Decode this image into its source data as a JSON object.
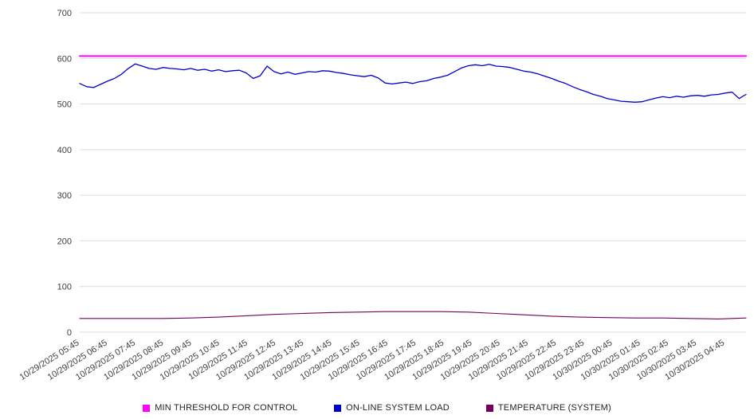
{
  "chart_data": {
    "type": "line",
    "title": "",
    "xlabel": "",
    "ylabel": "",
    "ylim": [
      0,
      700
    ],
    "y_ticks": [
      0,
      100,
      200,
      300,
      400,
      500,
      600,
      700
    ],
    "grid": true,
    "legend_position": "bottom",
    "x_labels": [
      "10/29/2025 05:45",
      "10/29/2025 06:45",
      "10/29/2025 07:45",
      "10/29/2025 08:45",
      "10/29/2025 09:45",
      "10/29/2025 10:45",
      "10/29/2025 11:45",
      "10/29/2025 12:45",
      "10/29/2025 13:45",
      "10/29/2025 14:45",
      "10/29/2025 15:45",
      "10/29/2025 16:45",
      "10/29/2025 17:45",
      "10/29/2025 18:45",
      "10/29/2025 19:45",
      "10/29/2025 20:45",
      "10/29/2025 21:45",
      "10/29/2025 22:45",
      "10/29/2025 23:45",
      "10/30/2025 00:45",
      "10/30/2025 01:45",
      "10/30/2025 02:45",
      "10/30/2025 03:45",
      "10/30/2025 04:45"
    ],
    "series": [
      {
        "id": "min-threshold-for-control",
        "name": "MIN THRESHOLD FOR CONTROL",
        "color": "#ff00ff",
        "width": 2,
        "values": [
          605,
          605
        ]
      },
      {
        "id": "on-line-system-load",
        "name": "ON-LINE SYSTEM LOAD",
        "color": "#0000cd",
        "width": 1.3,
        "values": [
          545,
          538,
          536,
          543,
          550,
          556,
          565,
          578,
          588,
          583,
          578,
          576,
          580,
          578,
          577,
          575,
          578,
          574,
          576,
          572,
          575,
          571,
          573,
          574,
          568,
          556,
          562,
          583,
          571,
          566,
          570,
          565,
          568,
          571,
          570,
          573,
          572,
          569,
          567,
          564,
          562,
          560,
          563,
          557,
          546,
          544,
          546,
          548,
          545,
          549,
          551,
          556,
          559,
          563,
          571,
          579,
          584,
          586,
          584,
          587,
          583,
          582,
          580,
          576,
          572,
          570,
          566,
          561,
          556,
          550,
          545,
          538,
          532,
          527,
          521,
          517,
          512,
          509,
          506,
          505,
          504,
          505,
          509,
          513,
          516,
          514,
          517,
          515,
          518,
          519,
          517,
          520,
          521,
          524,
          526,
          512,
          521
        ]
      },
      {
        "id": "temperature-system",
        "name": "TEMPERATURE (SYSTEM)",
        "color": "#730060",
        "width": 1.1,
        "values": [
          30,
          30,
          30,
          30,
          31,
          33,
          36,
          39,
          41,
          43,
          44,
          45,
          45,
          45,
          44,
          41,
          38,
          35,
          33,
          32,
          31,
          31,
          30,
          29,
          31
        ]
      }
    ]
  },
  "legend": {
    "items": [
      {
        "label": "MIN THRESHOLD FOR CONTROL",
        "color": "#ff00ff"
      },
      {
        "label": "ON-LINE SYSTEM LOAD",
        "color": "#0000cd"
      },
      {
        "label": "TEMPERATURE (SYSTEM)",
        "color": "#730060"
      }
    ]
  }
}
